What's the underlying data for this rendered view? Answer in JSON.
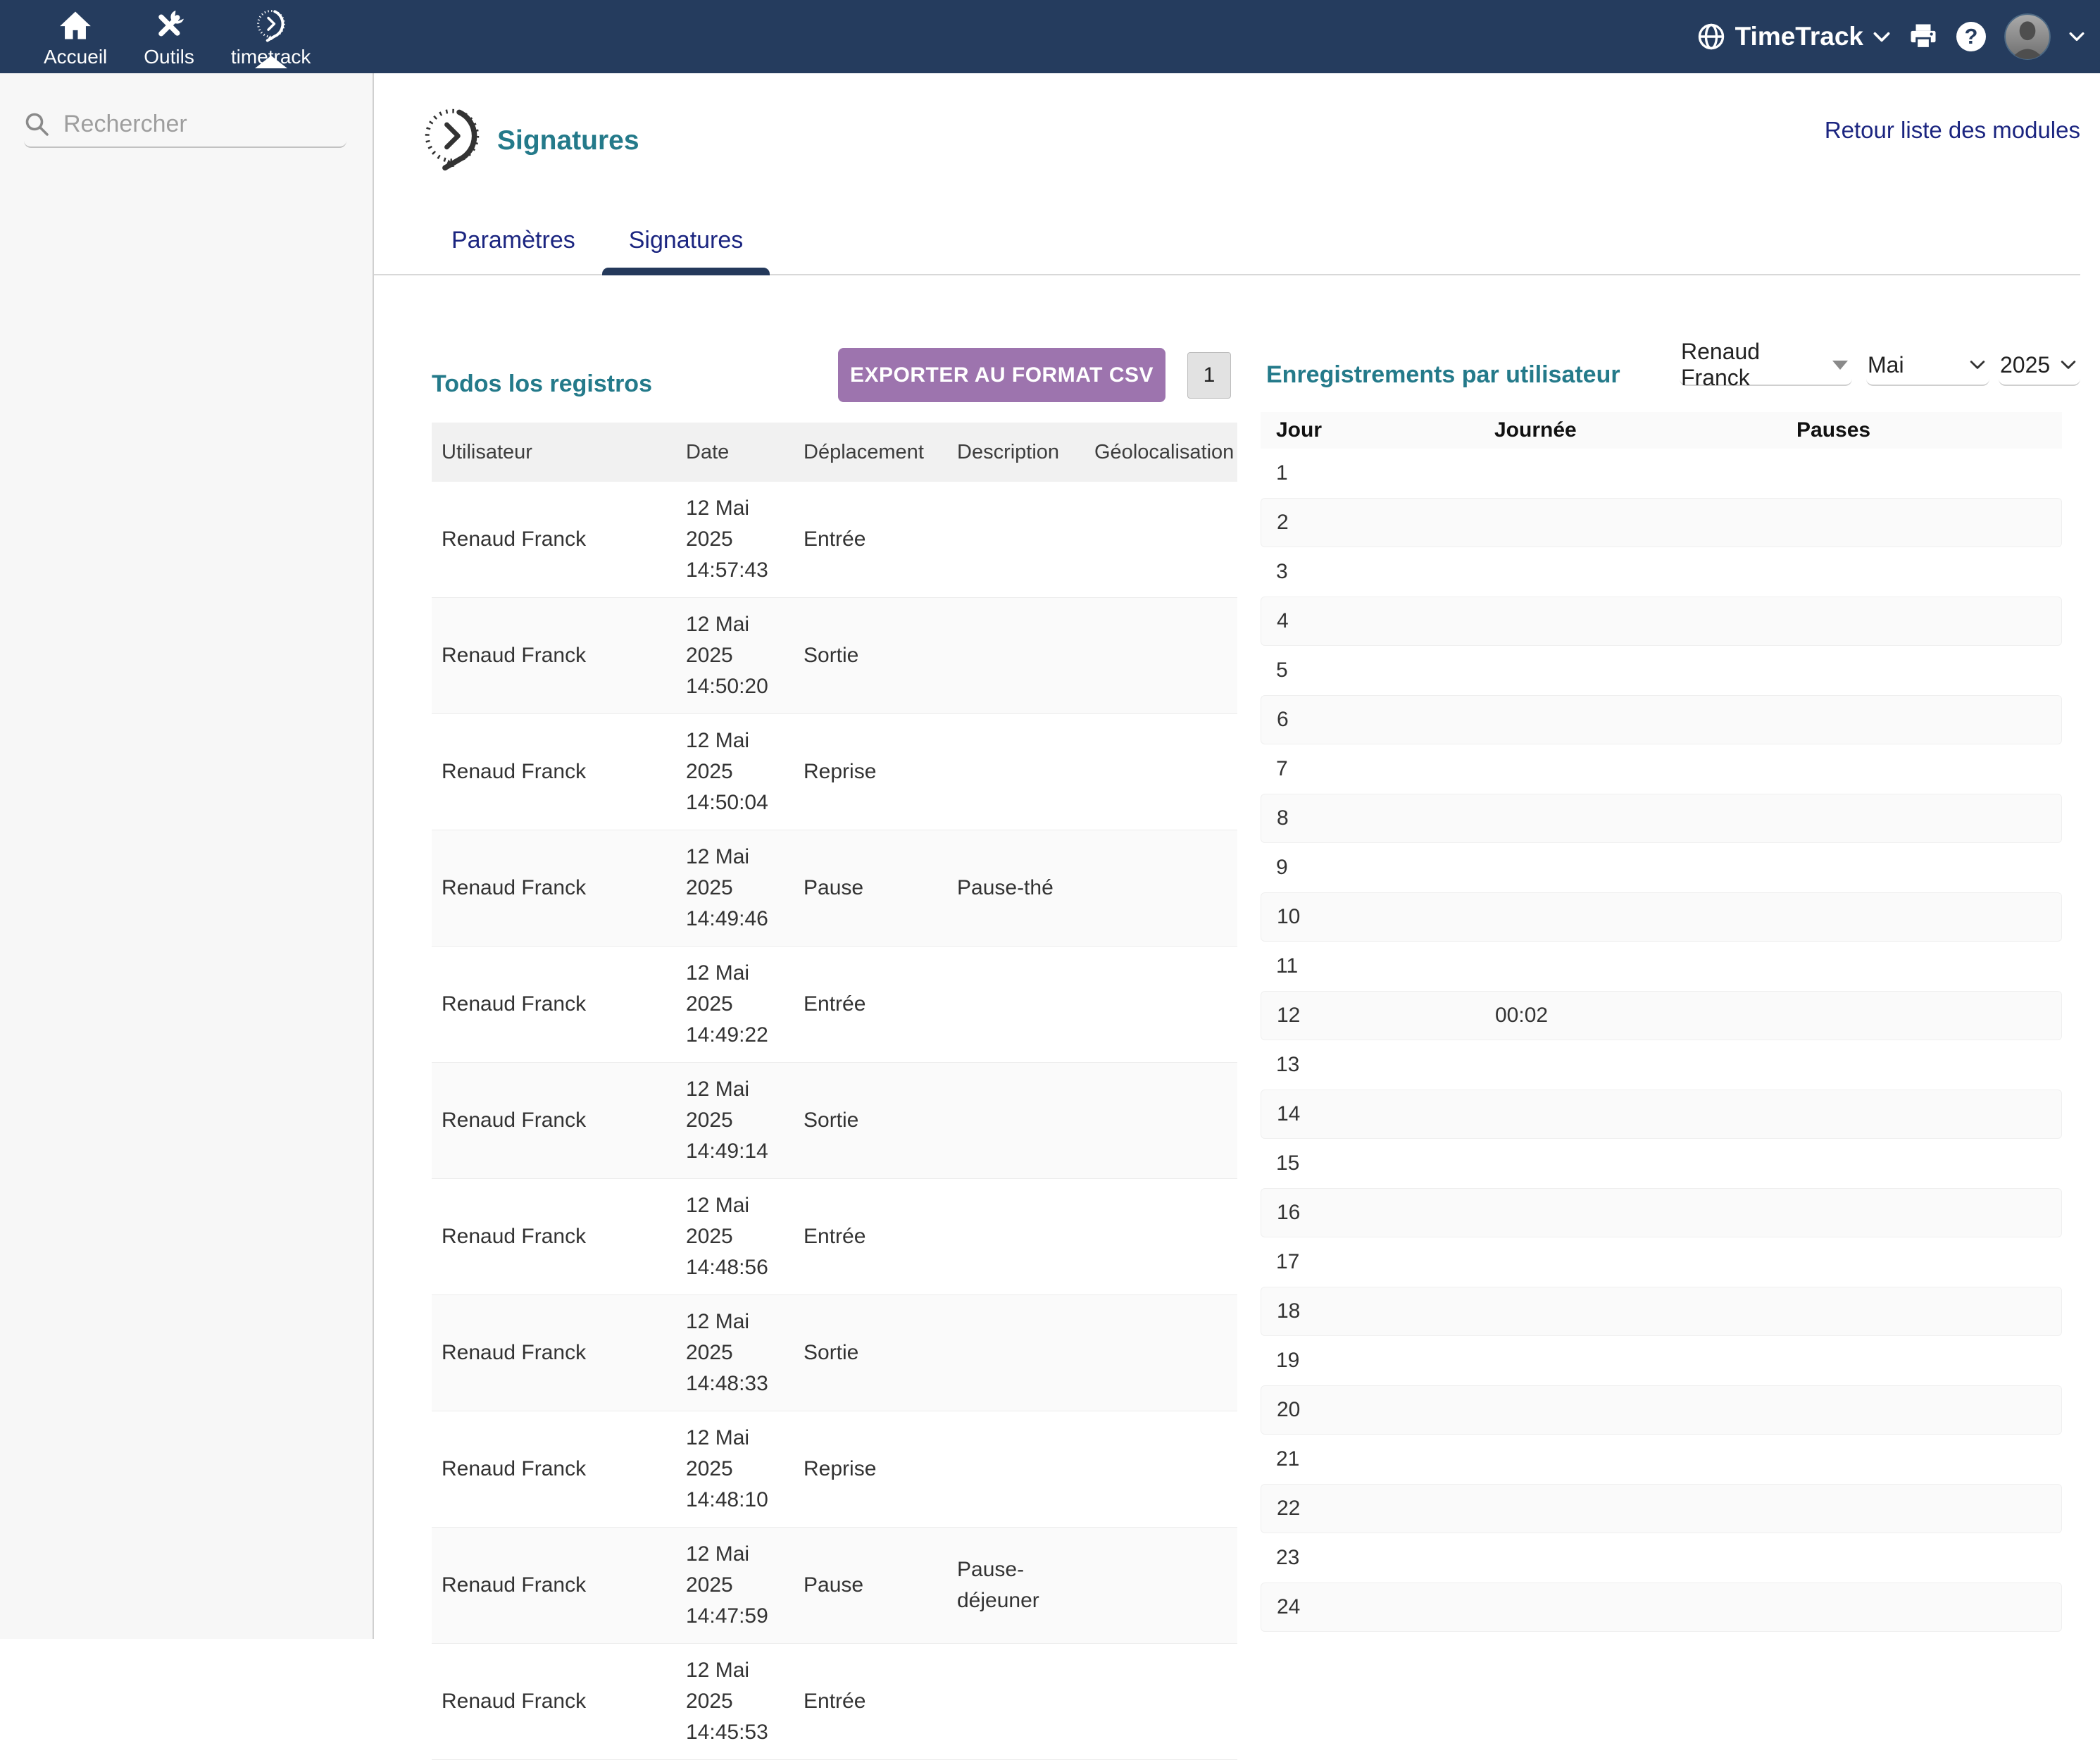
{
  "navbar": {
    "items": [
      {
        "label": "Accueil"
      },
      {
        "label": "Outils"
      },
      {
        "label": "timetrack",
        "active": true
      }
    ],
    "brand": "TimeTrack"
  },
  "sidebar": {
    "search_placeholder": "Rechercher"
  },
  "page": {
    "title": "Signatures",
    "back_link": "Retour liste des modules",
    "tabs": [
      {
        "label": "Paramètres",
        "active": false
      },
      {
        "label": "Signatures",
        "active": true
      }
    ]
  },
  "registros": {
    "heading": "Todos los registros",
    "export_button": "EXPORTER AU FORMAT CSV",
    "page_number": "1",
    "columns": [
      "Utilisateur",
      "Date",
      "Déplacement",
      "Description",
      "Géolocalisation"
    ],
    "rows": [
      {
        "user": "Renaud Franck",
        "date_lines": [
          "12 Mai",
          "2025",
          "14:57:43"
        ],
        "movement": "Entrée",
        "description": "",
        "geolocation": ""
      },
      {
        "user": "Renaud Franck",
        "date_lines": [
          "12 Mai",
          "2025",
          "14:50:20"
        ],
        "movement": "Sortie",
        "description": "",
        "geolocation": ""
      },
      {
        "user": "Renaud Franck",
        "date_lines": [
          "12 Mai",
          "2025",
          "14:50:04"
        ],
        "movement": "Reprise",
        "description": "",
        "geolocation": ""
      },
      {
        "user": "Renaud Franck",
        "date_lines": [
          "12 Mai",
          "2025",
          "14:49:46"
        ],
        "movement": "Pause",
        "description": "Pause-thé",
        "geolocation": ""
      },
      {
        "user": "Renaud Franck",
        "date_lines": [
          "12 Mai",
          "2025",
          "14:49:22"
        ],
        "movement": "Entrée",
        "description": "",
        "geolocation": ""
      },
      {
        "user": "Renaud Franck",
        "date_lines": [
          "12 Mai",
          "2025",
          "14:49:14"
        ],
        "movement": "Sortie",
        "description": "",
        "geolocation": ""
      },
      {
        "user": "Renaud Franck",
        "date_lines": [
          "12 Mai",
          "2025",
          "14:48:56"
        ],
        "movement": "Entrée",
        "description": "",
        "geolocation": ""
      },
      {
        "user": "Renaud Franck",
        "date_lines": [
          "12 Mai",
          "2025",
          "14:48:33"
        ],
        "movement": "Sortie",
        "description": "",
        "geolocation": ""
      },
      {
        "user": "Renaud Franck",
        "date_lines": [
          "12 Mai",
          "2025",
          "14:48:10"
        ],
        "movement": "Reprise",
        "description": "",
        "geolocation": ""
      },
      {
        "user": "Renaud Franck",
        "date_lines": [
          "12 Mai",
          "2025",
          "14:47:59"
        ],
        "movement": "Pause",
        "description": "Pause-déjeuner",
        "geolocation": ""
      },
      {
        "user": "Renaud Franck",
        "date_lines": [
          "12 Mai",
          "2025",
          "14:45:53"
        ],
        "movement": "Entrée",
        "description": "",
        "geolocation": ""
      }
    ]
  },
  "per_user": {
    "heading": "Enregistrements par utilisateur",
    "user_select": "Renaud Franck",
    "month_select": "Mai",
    "year_select": "2025",
    "columns": [
      "Jour",
      "Journée",
      "Pauses"
    ],
    "days": [
      {
        "day": "1",
        "journee": "",
        "pauses": ""
      },
      {
        "day": "2",
        "journee": "",
        "pauses": ""
      },
      {
        "day": "3",
        "journee": "",
        "pauses": ""
      },
      {
        "day": "4",
        "journee": "",
        "pauses": ""
      },
      {
        "day": "5",
        "journee": "",
        "pauses": ""
      },
      {
        "day": "6",
        "journee": "",
        "pauses": ""
      },
      {
        "day": "7",
        "journee": "",
        "pauses": ""
      },
      {
        "day": "8",
        "journee": "",
        "pauses": ""
      },
      {
        "day": "9",
        "journee": "",
        "pauses": ""
      },
      {
        "day": "10",
        "journee": "",
        "pauses": ""
      },
      {
        "day": "11",
        "journee": "",
        "pauses": ""
      },
      {
        "day": "12",
        "journee": "00:02",
        "pauses": ""
      },
      {
        "day": "13",
        "journee": "",
        "pauses": ""
      },
      {
        "day": "14",
        "journee": "",
        "pauses": ""
      },
      {
        "day": "15",
        "journee": "",
        "pauses": ""
      },
      {
        "day": "16",
        "journee": "",
        "pauses": ""
      },
      {
        "day": "17",
        "journee": "",
        "pauses": ""
      },
      {
        "day": "18",
        "journee": "",
        "pauses": ""
      },
      {
        "day": "19",
        "journee": "",
        "pauses": ""
      },
      {
        "day": "20",
        "journee": "",
        "pauses": ""
      },
      {
        "day": "21",
        "journee": "",
        "pauses": ""
      },
      {
        "day": "22",
        "journee": "",
        "pauses": ""
      },
      {
        "day": "23",
        "journee": "",
        "pauses": ""
      },
      {
        "day": "24",
        "journee": "",
        "pauses": ""
      }
    ]
  },
  "colors": {
    "navbar": "#253C5E",
    "accent_teal": "#247A8A",
    "link_navy": "#1B2580",
    "export_purple": "#9D74AE"
  }
}
